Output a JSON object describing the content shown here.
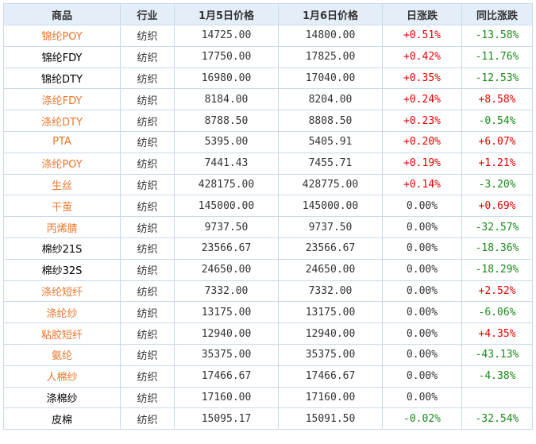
{
  "table": {
    "headers": [
      "商品",
      "行业",
      "1月5日价格",
      "1月6日价格",
      "日涨跌",
      "同比涨跌"
    ],
    "rows": [
      {
        "name": "锦纶POY",
        "highlight": true,
        "industry": "纺织",
        "price_jan5": "14725.00",
        "price_jan6": "14800.00",
        "daily": "+0.51%",
        "daily_dir": "up",
        "yoy": "-13.58%",
        "yoy_dir": "down"
      },
      {
        "name": "锦纶FDY",
        "highlight": false,
        "industry": "纺织",
        "price_jan5": "17750.00",
        "price_jan6": "17825.00",
        "daily": "+0.42%",
        "daily_dir": "up",
        "yoy": "-11.76%",
        "yoy_dir": "down"
      },
      {
        "name": "锦纶DTY",
        "highlight": false,
        "industry": "纺织",
        "price_jan5": "16980.00",
        "price_jan6": "17040.00",
        "daily": "+0.35%",
        "daily_dir": "up",
        "yoy": "-12.53%",
        "yoy_dir": "down"
      },
      {
        "name": "涤纶FDY",
        "highlight": true,
        "industry": "纺织",
        "price_jan5": "8184.00",
        "price_jan6": "8204.00",
        "daily": "+0.24%",
        "daily_dir": "up",
        "yoy": "+8.58%",
        "yoy_dir": "up"
      },
      {
        "name": "涤纶DTY",
        "highlight": true,
        "industry": "纺织",
        "price_jan5": "8788.50",
        "price_jan6": "8808.50",
        "daily": "+0.23%",
        "daily_dir": "up",
        "yoy": "-0.54%",
        "yoy_dir": "down"
      },
      {
        "name": "PTA",
        "highlight": true,
        "industry": "纺织",
        "price_jan5": "5395.00",
        "price_jan6": "5405.91",
        "daily": "+0.20%",
        "daily_dir": "up",
        "yoy": "+6.07%",
        "yoy_dir": "up"
      },
      {
        "name": "涤纶POY",
        "highlight": true,
        "industry": "纺织",
        "price_jan5": "7441.43",
        "price_jan6": "7455.71",
        "daily": "+0.19%",
        "daily_dir": "up",
        "yoy": "+1.21%",
        "yoy_dir": "up"
      },
      {
        "name": "生丝",
        "highlight": true,
        "industry": "纺织",
        "price_jan5": "428175.00",
        "price_jan6": "428775.00",
        "daily": "+0.14%",
        "daily_dir": "up",
        "yoy": "-3.20%",
        "yoy_dir": "down"
      },
      {
        "name": "干茧",
        "highlight": true,
        "industry": "纺织",
        "price_jan5": "145000.00",
        "price_jan6": "145000.00",
        "daily": "0.00%",
        "daily_dir": "flat",
        "yoy": "+0.69%",
        "yoy_dir": "up"
      },
      {
        "name": "丙烯腈",
        "highlight": true,
        "industry": "纺织",
        "price_jan5": "9737.50",
        "price_jan6": "9737.50",
        "daily": "0.00%",
        "daily_dir": "flat",
        "yoy": "-32.57%",
        "yoy_dir": "down"
      },
      {
        "name": "棉纱21S",
        "highlight": false,
        "industry": "纺织",
        "price_jan5": "23566.67",
        "price_jan6": "23566.67",
        "daily": "0.00%",
        "daily_dir": "flat",
        "yoy": "-18.36%",
        "yoy_dir": "down"
      },
      {
        "name": "棉纱32S",
        "highlight": false,
        "industry": "纺织",
        "price_jan5": "24650.00",
        "price_jan6": "24650.00",
        "daily": "0.00%",
        "daily_dir": "flat",
        "yoy": "-18.29%",
        "yoy_dir": "down"
      },
      {
        "name": "涤纶短纤",
        "highlight": true,
        "industry": "纺织",
        "price_jan5": "7332.00",
        "price_jan6": "7332.00",
        "daily": "0.00%",
        "daily_dir": "flat",
        "yoy": "+2.52%",
        "yoy_dir": "up"
      },
      {
        "name": "涤纶纱",
        "highlight": true,
        "industry": "纺织",
        "price_jan5": "13175.00",
        "price_jan6": "13175.00",
        "daily": "0.00%",
        "daily_dir": "flat",
        "yoy": "-6.06%",
        "yoy_dir": "down"
      },
      {
        "name": "粘胶短纤",
        "highlight": true,
        "industry": "纺织",
        "price_jan5": "12940.00",
        "price_jan6": "12940.00",
        "daily": "0.00%",
        "daily_dir": "flat",
        "yoy": "+4.35%",
        "yoy_dir": "up"
      },
      {
        "name": "氨纶",
        "highlight": true,
        "industry": "纺织",
        "price_jan5": "35375.00",
        "price_jan6": "35375.00",
        "daily": "0.00%",
        "daily_dir": "flat",
        "yoy": "-43.13%",
        "yoy_dir": "down"
      },
      {
        "name": "人棉纱",
        "highlight": true,
        "industry": "纺织",
        "price_jan5": "17466.67",
        "price_jan6": "17466.67",
        "daily": "0.00%",
        "daily_dir": "flat",
        "yoy": "-4.38%",
        "yoy_dir": "down"
      },
      {
        "name": "涤棉纱",
        "highlight": false,
        "industry": "纺织",
        "price_jan5": "17160.00",
        "price_jan6": "17160.00",
        "daily": "0.00%",
        "daily_dir": "flat",
        "yoy": "",
        "yoy_dir": "flat"
      },
      {
        "name": "皮棉",
        "highlight": false,
        "industry": "纺织",
        "price_jan5": "15095.17",
        "price_jan6": "15091.50",
        "daily": "-0.02%",
        "daily_dir": "down",
        "yoy": "-32.54%",
        "yoy_dir": "down"
      }
    ]
  },
  "colors": {
    "header_bg": "#e4eef8",
    "border": "#c8d9ec",
    "highlight_name": "#e8762d",
    "up": "#e60000",
    "down": "#1a8a1a"
  }
}
